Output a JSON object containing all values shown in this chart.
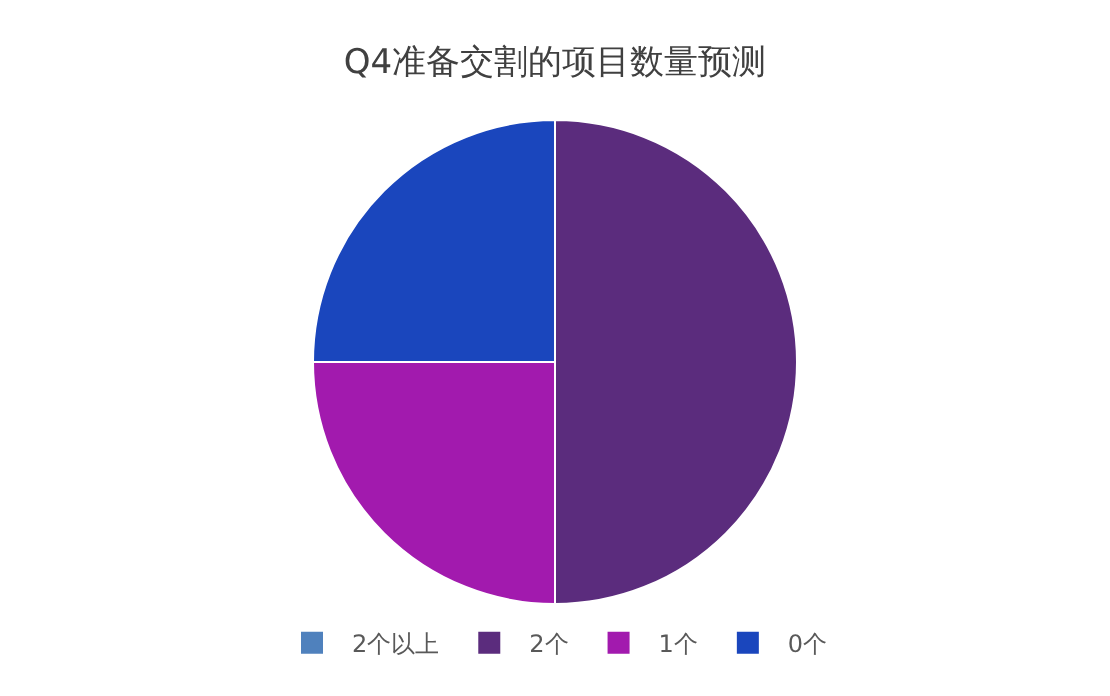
{
  "chart_data": {
    "type": "pie",
    "title": "Q4准备交割的项目数量预测",
    "categories": [
      "2个以上",
      "2个",
      "1个",
      "0个"
    ],
    "values": [
      0,
      50,
      25,
      25
    ],
    "colors": [
      "#4f81bd",
      "#5b2c7d",
      "#a21aae",
      "#1a46bd"
    ],
    "legend": "bottom"
  }
}
